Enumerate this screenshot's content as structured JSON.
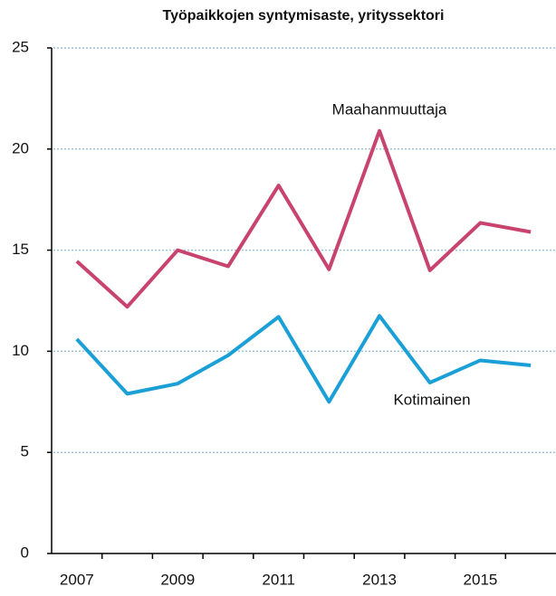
{
  "chart_data": {
    "type": "line",
    "title": "Työpaikkojen syntymisaste, yrityssektori",
    "categories": [
      "2007",
      null,
      "2009",
      null,
      "2011",
      null,
      "2013",
      null,
      "2015",
      null
    ],
    "series": [
      {
        "name": "Maahanmuuttaja",
        "color": "#c8446e",
        "values": [
          14.45,
          12.2,
          15.0,
          14.2,
          18.2,
          14.05,
          20.9,
          14.0,
          16.35,
          15.9
        ]
      },
      {
        "name": "Kotimainen",
        "color": "#1aa0d6",
        "values": [
          10.6,
          7.9,
          8.4,
          9.8,
          11.7,
          7.5,
          11.75,
          8.45,
          9.55,
          9.3
        ]
      }
    ],
    "ylim": [
      0,
      25
    ],
    "yticks": [
      0,
      5,
      10,
      15,
      20,
      25
    ],
    "grid": true
  }
}
